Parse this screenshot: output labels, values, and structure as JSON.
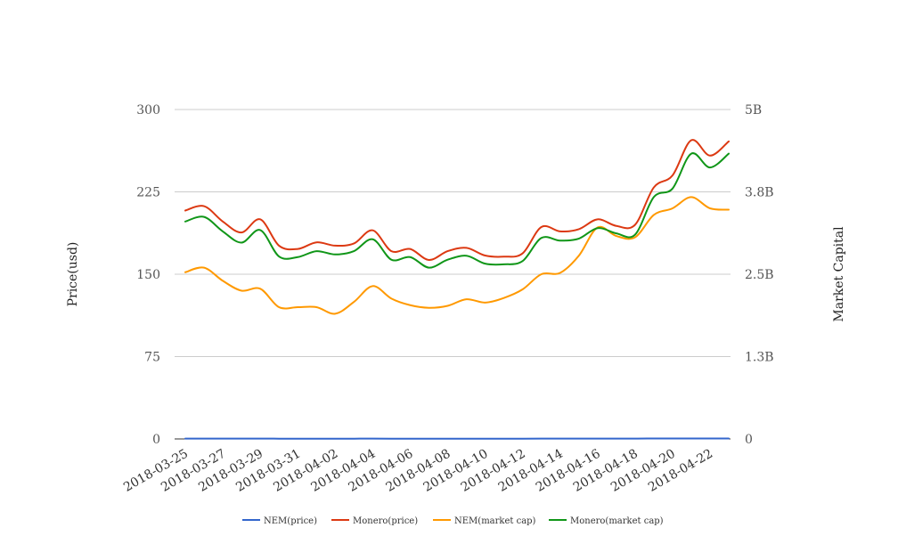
{
  "chart_data": {
    "type": "line",
    "x": [
      "2018-03-25",
      "2018-03-26",
      "2018-03-27",
      "2018-03-28",
      "2018-03-29",
      "2018-03-30",
      "2018-03-31",
      "2018-04-01",
      "2018-04-02",
      "2018-04-03",
      "2018-04-04",
      "2018-04-05",
      "2018-04-06",
      "2018-04-07",
      "2018-04-08",
      "2018-04-09",
      "2018-04-10",
      "2018-04-11",
      "2018-04-12",
      "2018-04-13",
      "2018-04-14",
      "2018-04-15",
      "2018-04-16",
      "2018-04-17",
      "2018-04-18",
      "2018-04-19",
      "2018-04-20",
      "2018-04-21",
      "2018-04-22",
      "2018-04-23"
    ],
    "x_tick_labels": [
      "2018-03-25",
      "2018-03-27",
      "2018-03-29",
      "2018-03-31",
      "2018-04-02",
      "2018-04-04",
      "2018-04-06",
      "2018-04-08",
      "2018-04-10",
      "2018-04-12",
      "2018-04-14",
      "2018-04-16",
      "2018-04-18",
      "2018-04-20",
      "2018-04-22"
    ],
    "y_left": {
      "label": "Price(usd)",
      "ticks": [
        "0",
        "75",
        "150",
        "225",
        "300"
      ],
      "range": [
        0,
        300
      ]
    },
    "y_right": {
      "label": "Market Capital",
      "ticks": [
        "0",
        "1.3B",
        "2.5B",
        "3.8B",
        "5B"
      ],
      "range": [
        0,
        5000000000
      ]
    },
    "grid": true,
    "legend_position": "bottom",
    "series": [
      {
        "name": "NEM(price)",
        "axis": "left",
        "color": "#3366cc",
        "values": [
          0.33,
          0.32,
          0.29,
          0.27,
          0.28,
          0.25,
          0.24,
          0.24,
          0.23,
          0.25,
          0.28,
          0.25,
          0.24,
          0.23,
          0.23,
          0.24,
          0.23,
          0.23,
          0.25,
          0.28,
          0.28,
          0.31,
          0.35,
          0.34,
          0.33,
          0.37,
          0.38,
          0.4,
          0.38,
          0.38
        ]
      },
      {
        "name": "Monero(price)",
        "axis": "left",
        "color": "#dc3912",
        "values": [
          208,
          212,
          198,
          188,
          200,
          176,
          173,
          179,
          176,
          178,
          190,
          171,
          173,
          163,
          171,
          174,
          167,
          166,
          169,
          193,
          189,
          191,
          200,
          194,
          195,
          229,
          240,
          272,
          258,
          271
        ]
      },
      {
        "name": "NEM(market cap)",
        "axis": "right",
        "color": "#ff9900",
        "values": [
          2530000000,
          2600000000,
          2400000000,
          2250000000,
          2280000000,
          2000000000,
          2000000000,
          2000000000,
          1900000000,
          2080000000,
          2320000000,
          2130000000,
          2030000000,
          1990000000,
          2020000000,
          2120000000,
          2070000000,
          2140000000,
          2270000000,
          2500000000,
          2520000000,
          2780000000,
          3210000000,
          3080000000,
          3060000000,
          3400000000,
          3500000000,
          3670000000,
          3500000000,
          3480000000
        ]
      },
      {
        "name": "Monero(market cap)",
        "axis": "right",
        "color": "#109618",
        "values": [
          3300000000,
          3370000000,
          3150000000,
          2980000000,
          3170000000,
          2770000000,
          2760000000,
          2850000000,
          2800000000,
          2850000000,
          3030000000,
          2720000000,
          2760000000,
          2600000000,
          2720000000,
          2780000000,
          2660000000,
          2650000000,
          2700000000,
          3050000000,
          3010000000,
          3040000000,
          3200000000,
          3120000000,
          3100000000,
          3670000000,
          3800000000,
          4330000000,
          4120000000,
          4330000000
        ]
      }
    ]
  }
}
